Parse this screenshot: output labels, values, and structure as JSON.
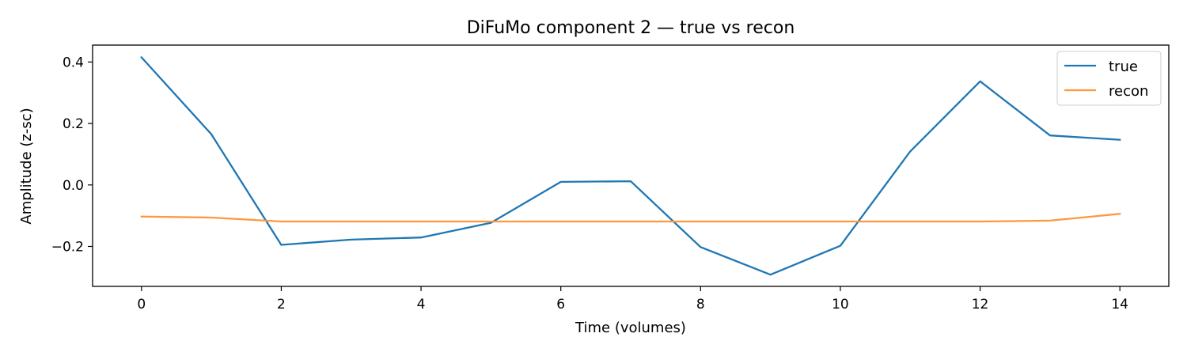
{
  "chart_data": {
    "type": "line",
    "title": "DiFuMo component 2 — true vs recon",
    "xlabel": "Time (volumes)",
    "ylabel": "Amplitude (z-sc)",
    "xlim": [
      -0.7,
      14.7
    ],
    "ylim": [
      -0.33,
      0.455
    ],
    "xticks": [
      0,
      2,
      4,
      6,
      8,
      10,
      12,
      14
    ],
    "xtick_labels": [
      "0",
      "2",
      "4",
      "6",
      "8",
      "10",
      "12",
      "14"
    ],
    "yticks": [
      -0.2,
      0.0,
      0.2,
      0.4
    ],
    "ytick_labels": [
      "−0.2",
      "0.0",
      "0.2",
      "0.4"
    ],
    "grid": false,
    "legend_position": "top-right",
    "x": [
      0,
      1,
      2,
      3,
      4,
      5,
      6,
      7,
      8,
      9,
      10,
      11,
      12,
      13,
      14
    ],
    "series": [
      {
        "name": "true",
        "color": "#1f77b4",
        "values": [
          0.415,
          0.165,
          -0.195,
          -0.178,
          -0.171,
          -0.123,
          0.01,
          0.012,
          -0.202,
          -0.292,
          -0.198,
          0.109,
          0.337,
          0.161,
          0.147
        ]
      },
      {
        "name": "recon",
        "color": "#ff983d",
        "values": [
          -0.103,
          -0.106,
          -0.119,
          -0.119,
          -0.119,
          -0.119,
          -0.119,
          -0.119,
          -0.119,
          -0.119,
          -0.119,
          -0.119,
          -0.119,
          -0.116,
          -0.094
        ]
      }
    ]
  }
}
